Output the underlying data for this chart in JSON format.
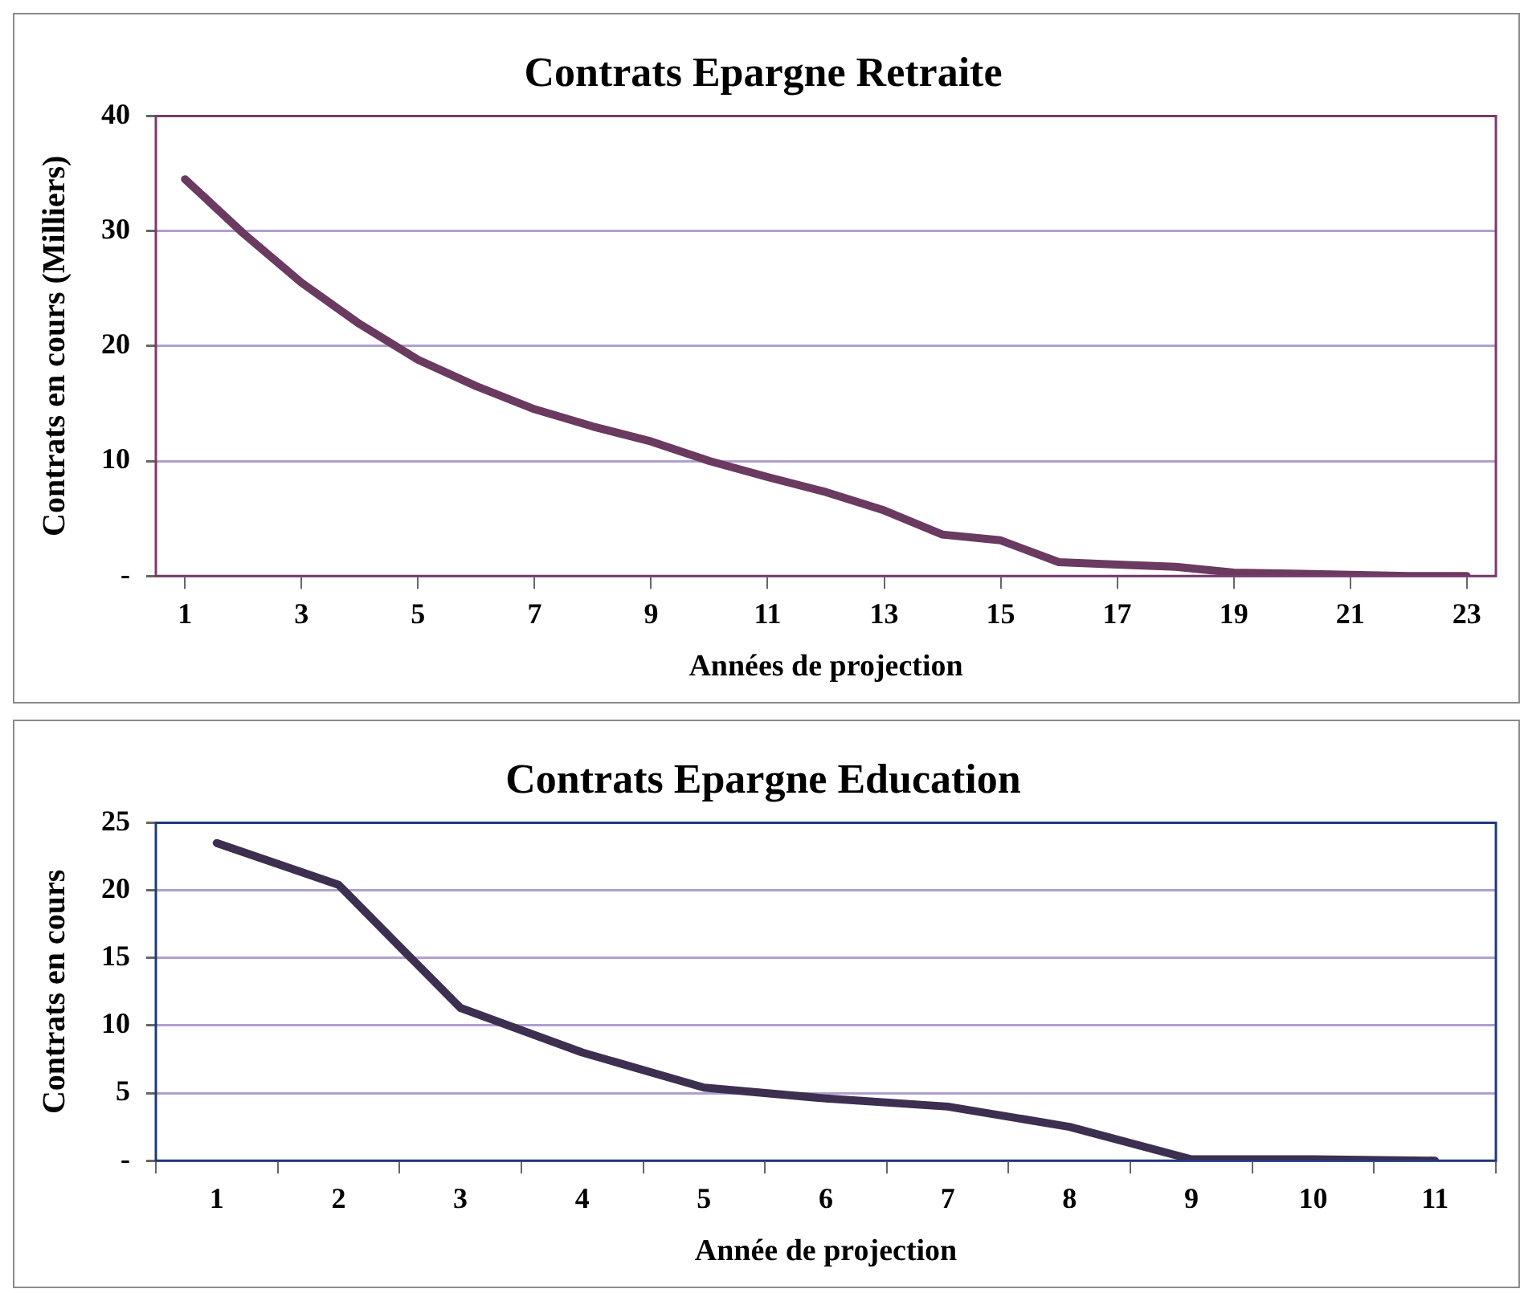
{
  "chart_data": [
    {
      "type": "line",
      "title": "Contrats Epargne Retraite",
      "xlabel": "Années de projection",
      "ylabel": "Contrats en cours (Milliers)",
      "x": [
        1,
        2,
        3,
        4,
        5,
        6,
        7,
        8,
        9,
        10,
        11,
        12,
        13,
        14,
        15,
        16,
        17,
        18,
        19,
        20,
        21,
        22,
        23
      ],
      "xlim": [
        0.5,
        23.5
      ],
      "xticks": [
        1,
        3,
        5,
        7,
        9,
        11,
        13,
        15,
        17,
        19,
        21,
        23
      ],
      "series": [
        {
          "color": "#6b3a60",
          "values": [
            34.5,
            29.8,
            25.5,
            21.9,
            18.8,
            16.5,
            14.5,
            13.0,
            11.7,
            10.0,
            8.6,
            7.3,
            5.7,
            3.6,
            3.1,
            1.2,
            1.0,
            0.8,
            0.3,
            0.2,
            0.1,
            0,
            0
          ]
        }
      ],
      "ylim": [
        0,
        40
      ],
      "yticks": [
        {
          "value": 0,
          "label": "-"
        },
        10,
        20,
        30,
        40
      ],
      "grid": "y",
      "legend": false,
      "marker": "none",
      "line_style": "solid"
    },
    {
      "type": "line",
      "title": "Contrats Epargne Education",
      "xlabel": "Année de projection",
      "ylabel": "Contrats en cours",
      "categories": [
        "1",
        "2",
        "3",
        "4",
        "5",
        "6",
        "7",
        "8",
        "9",
        "10",
        "11"
      ],
      "series": [
        {
          "color": "#3d2f50",
          "values": [
            23.5,
            20.4,
            11.3,
            8.0,
            5.4,
            4.6,
            4.0,
            2.5,
            0.1,
            0.1,
            0
          ]
        }
      ],
      "ylim": [
        0,
        25
      ],
      "yticks": [
        {
          "value": 0,
          "label": "-"
        },
        5,
        10,
        15,
        20,
        25
      ],
      "grid": "y",
      "legend": false,
      "marker": "none",
      "line_style": "solid"
    }
  ]
}
